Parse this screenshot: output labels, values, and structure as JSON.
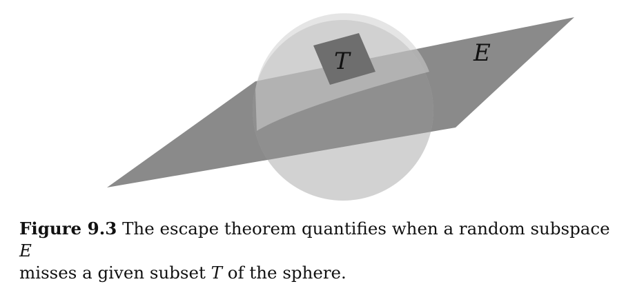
{
  "figure": {
    "label_T": "T",
    "label_E": "E"
  },
  "caption": {
    "label": "Figure 9.3",
    "line1_text": "The escape theorem quantifies when a random subspace",
    "line1_math": "E",
    "line2_text_a": "misses a given subset",
    "line2_math": "T",
    "line2_text_b": "of the sphere."
  }
}
